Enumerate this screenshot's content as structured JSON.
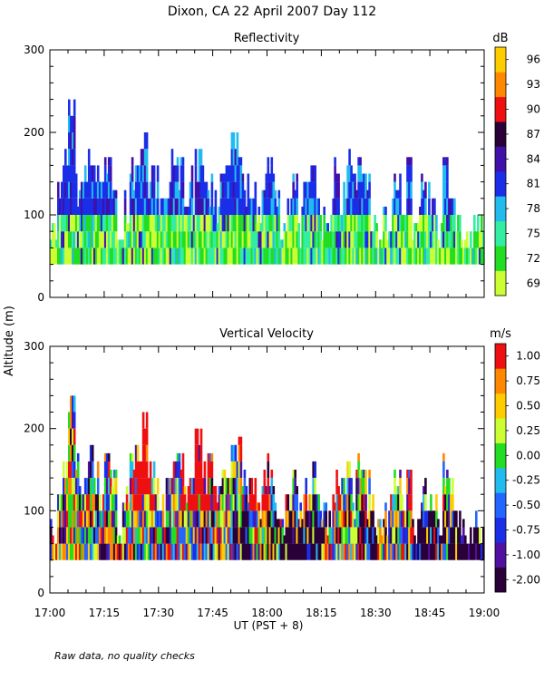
{
  "chart_data": {
    "type": "heatmap",
    "title": "Dixon, CA 22 April 2007  Day 112",
    "ylabel": "Altitude (m)",
    "xlabel": "UT  (PST + 8)",
    "note": "Raw data, no quality checks",
    "x_range": [
      "17:00",
      "19:00"
    ],
    "xlim_minutes": [
      0,
      120
    ],
    "x_tick_labels": [
      "17:00",
      "17:15",
      "17:30",
      "17:45",
      "18:00",
      "18:15",
      "18:30",
      "18:45",
      "19:00"
    ],
    "ylim": [
      0,
      300
    ],
    "y_tick_labels": [
      "0",
      "100",
      "200",
      "300"
    ],
    "panels": [
      {
        "id": "reflectivity",
        "title": "Reflectivity",
        "units": "dB",
        "value_range": [
          69,
          97
        ],
        "colorbar_labels": [
          "96",
          "93",
          "90",
          "87",
          "84",
          "81",
          "78",
          "75",
          "72",
          "69"
        ],
        "colorbar_colors": [
          "#ccff33",
          "#22dd22",
          "#33eea0",
          "#22bbee",
          "#1a2ee8",
          "#4010aa",
          "#2a0038",
          "#ee1010",
          "#ff8800",
          "#ffcc00"
        ],
        "echo_base_m": 40,
        "echo_top_profile_m": [
          90,
          140,
          180,
          240,
          170,
          160,
          180,
          160,
          140,
          170,
          150,
          90,
          130,
          170,
          180,
          200,
          160,
          160,
          120,
          140,
          180,
          170,
          130,
          160,
          200,
          160,
          170,
          130,
          170,
          160,
          200,
          190,
          150,
          140,
          110,
          150,
          170,
          130,
          90,
          120,
          150,
          110,
          140,
          160,
          120,
          110,
          120,
          170,
          140,
          180,
          150,
          170,
          150,
          120,
          90,
          130,
          120,
          150,
          120,
          170,
          110,
          150,
          140,
          120,
          90,
          170,
          140,
          100,
          90,
          80,
          100,
          100
        ]
      },
      {
        "id": "vertical-velocity",
        "title": "Vertical Velocity",
        "units": "m/s",
        "value_range": [
          -2.0,
          1.25
        ],
        "colorbar_labels": [
          "1.00",
          "0.75",
          "0.50",
          "0.25",
          "0.00",
          "-0.25",
          "-0.50",
          "-0.75",
          "-1.00",
          "-2.00"
        ],
        "colorbar_colors": [
          "#2a0038",
          "#5010a0",
          "#1a2ee8",
          "#2266ff",
          "#22bbee",
          "#22dd22",
          "#ccff33",
          "#ffcc00",
          "#ff8800",
          "#ee1010"
        ],
        "echo_base_m": 40,
        "echo_top_profile_m": [
          90,
          140,
          180,
          240,
          170,
          160,
          180,
          160,
          140,
          170,
          150,
          90,
          130,
          170,
          180,
          220,
          160,
          160,
          120,
          140,
          180,
          170,
          130,
          160,
          200,
          160,
          170,
          130,
          170,
          160,
          200,
          190,
          150,
          140,
          110,
          150,
          170,
          130,
          90,
          120,
          150,
          110,
          140,
          160,
          120,
          110,
          120,
          170,
          140,
          180,
          150,
          170,
          150,
          120,
          90,
          130,
          120,
          150,
          120,
          170,
          110,
          150,
          140,
          120,
          90,
          170,
          140,
          100,
          90,
          80,
          100,
          100
        ],
        "strong_updraft_windows_min": [
          [
            23,
            28
          ],
          [
            36,
            46
          ],
          [
            55,
            60
          ],
          [
            78,
            80
          ],
          [
            90,
            92
          ],
          [
            98,
            100
          ]
        ],
        "strong_downdraft_windows_min": [
          [
            50,
            55
          ],
          [
            60,
            75
          ],
          [
            85,
            90
          ],
          [
            100,
            120
          ]
        ]
      }
    ]
  }
}
